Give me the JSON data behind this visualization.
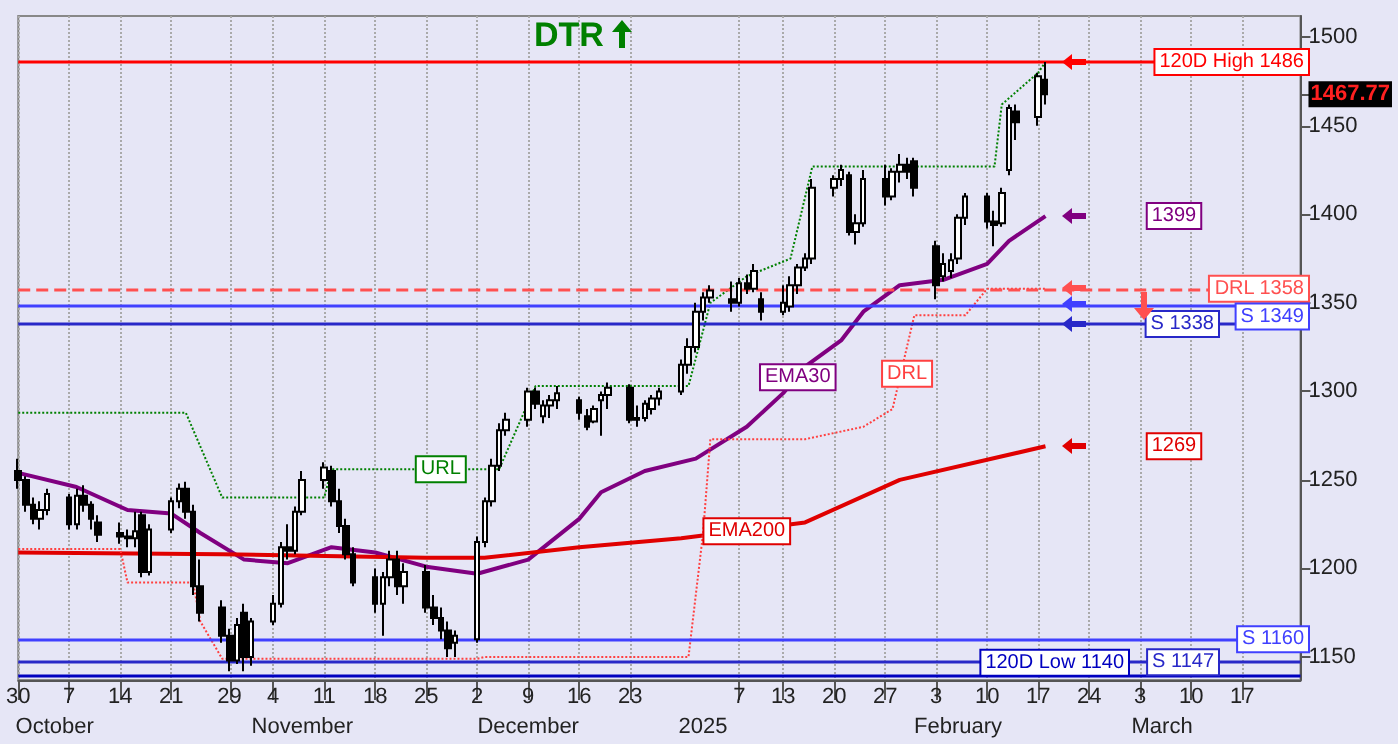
{
  "chart_data": {
    "type": "candlestick",
    "title": "DTR",
    "x": [
      "2024-09-30",
      "2024-10-01",
      "2024-10-02",
      "2024-10-03",
      "2024-10-04",
      "2024-10-07",
      "2024-10-08",
      "2024-10-09",
      "2024-10-10",
      "2024-10-11",
      "2024-10-14",
      "2024-10-15",
      "2024-10-16",
      "2024-10-17",
      "2024-10-18",
      "2024-10-21",
      "2024-10-22",
      "2024-10-23",
      "2024-10-24",
      "2024-10-25",
      "2024-10-28",
      "2024-10-29",
      "2024-10-30",
      "2024-10-31",
      "2024-11-01",
      "2024-11-04",
      "2024-11-05",
      "2024-11-06",
      "2024-11-07",
      "2024-11-08",
      "2024-11-11",
      "2024-11-12",
      "2024-11-13",
      "2024-11-14",
      "2024-11-15",
      "2024-11-18",
      "2024-11-19",
      "2024-11-20",
      "2024-11-21",
      "2024-11-22",
      "2024-11-25",
      "2024-11-26",
      "2024-11-27",
      "2024-11-28",
      "2024-11-29",
      "2024-12-02",
      "2024-12-03",
      "2024-12-04",
      "2024-12-05",
      "2024-12-06",
      "2024-12-09",
      "2024-12-10",
      "2024-12-11",
      "2024-12-12",
      "2024-12-13",
      "2024-12-16",
      "2024-12-17",
      "2024-12-18",
      "2024-12-19",
      "2024-12-20",
      "2024-12-23",
      "2024-12-24",
      "2024-12-25",
      "2024-12-26",
      "2024-12-27",
      "2024-12-30",
      "2024-12-31",
      "2025-01-01",
      "2025-01-02",
      "2025-01-03",
      "2025-01-06",
      "2025-01-07",
      "2025-01-08",
      "2025-01-09",
      "2025-01-10",
      "2025-01-13",
      "2025-01-14",
      "2025-01-15",
      "2025-01-16",
      "2025-01-17",
      "2025-01-20",
      "2025-01-21",
      "2025-01-22",
      "2025-01-23",
      "2025-01-24",
      "2025-01-27",
      "2025-01-28",
      "2025-01-29",
      "2025-01-30",
      "2025-01-31",
      "2025-02-03",
      "2025-02-04",
      "2025-02-05",
      "2025-02-06",
      "2025-02-07",
      "2025-02-10",
      "2025-02-11",
      "2025-02-12",
      "2025-02-13",
      "2025-02-14",
      "2025-02-17",
      "2025-02-18"
    ],
    "ohlc": [
      [
        1255,
        1262,
        1245,
        1250
      ],
      [
        1250,
        1252,
        1232,
        1236
      ],
      [
        1236,
        1240,
        1225,
        1228
      ],
      [
        1228,
        1238,
        1222,
        1233
      ],
      [
        1233,
        1245,
        1230,
        1242
      ],
      [
        1240,
        1242,
        1222,
        1225
      ],
      [
        1225,
        1245,
        1222,
        1241
      ],
      [
        1241,
        1247,
        1232,
        1236
      ],
      [
        1236,
        1238,
        1222,
        1228
      ],
      [
        1226,
        1230,
        1215,
        1219
      ],
      [
        1220,
        1226,
        1214,
        1218
      ],
      [
        1218,
        1222,
        1212,
        1217
      ],
      [
        1217,
        1232,
        1212,
        1221
      ],
      [
        1230,
        1232,
        1195,
        1198
      ],
      [
        1198,
        1225,
        1196,
        1222
      ],
      [
        1222,
        1240,
        1220,
        1238
      ],
      [
        1238,
        1248,
        1234,
        1245
      ],
      [
        1245,
        1249,
        1228,
        1232
      ],
      [
        1232,
        1236,
        1185,
        1190
      ],
      [
        1190,
        1205,
        1170,
        1175
      ],
      [
        1178,
        1182,
        1158,
        1162
      ],
      [
        1162,
        1166,
        1142,
        1148
      ],
      [
        1148,
        1172,
        1146,
        1168
      ],
      [
        1175,
        1180,
        1142,
        1150
      ],
      [
        1150,
        1172,
        1145,
        1170
      ],
      [
        1170,
        1185,
        1168,
        1180
      ],
      [
        1180,
        1215,
        1178,
        1212
      ],
      [
        1212,
        1225,
        1205,
        1210
      ],
      [
        1210,
        1235,
        1208,
        1232
      ],
      [
        1232,
        1255,
        1230,
        1250
      ],
      [
        1250,
        1260,
        1245,
        1257
      ],
      [
        1255,
        1258,
        1235,
        1238
      ],
      [
        1238,
        1245,
        1220,
        1224
      ],
      [
        1224,
        1228,
        1205,
        1208
      ],
      [
        1208,
        1212,
        1190,
        1192
      ],
      [
        1195,
        1200,
        1175,
        1180
      ],
      [
        1180,
        1198,
        1162,
        1195
      ],
      [
        1195,
        1210,
        1190,
        1205
      ],
      [
        1205,
        1210,
        1185,
        1190
      ],
      [
        1190,
        1203,
        1180,
        1198
      ],
      [
        1198,
        1202,
        1175,
        1178
      ],
      [
        1178,
        1185,
        1168,
        1172
      ],
      [
        1172,
        1178,
        1160,
        1165
      ],
      [
        1165,
        1170,
        1150,
        1155
      ],
      [
        1158,
        1165,
        1150,
        1162
      ],
      [
        1160,
        1218,
        1158,
        1215
      ],
      [
        1215,
        1240,
        1212,
        1238
      ],
      [
        1238,
        1262,
        1235,
        1258
      ],
      [
        1258,
        1282,
        1255,
        1278
      ],
      [
        1278,
        1288,
        1275,
        1284
      ],
      [
        1284,
        1302,
        1280,
        1300
      ],
      [
        1300,
        1302,
        1290,
        1293
      ],
      [
        1286,
        1295,
        1282,
        1292
      ],
      [
        1292,
        1298,
        1285,
        1295
      ],
      [
        1295,
        1303,
        1290,
        1299
      ],
      [
        1295,
        1297,
        1284,
        1288
      ],
      [
        1286,
        1290,
        1278,
        1280
      ],
      [
        1283,
        1292,
        1282,
        1290
      ],
      [
        1295,
        1300,
        1275,
        1298
      ],
      [
        1298,
        1305,
        1290,
        1302
      ],
      [
        1302,
        1304,
        1282,
        1284
      ],
      [
        1284,
        1292,
        1280,
        1285
      ],
      [
        1285,
        1295,
        1283,
        1293
      ],
      [
        1290,
        1298,
        1287,
        1296
      ],
      [
        1296,
        1302,
        1292,
        1300
      ],
      [
        1300,
        1318,
        1298,
        1315
      ],
      [
        1315,
        1330,
        1310,
        1325
      ],
      [
        1325,
        1350,
        1322,
        1345
      ],
      [
        1345,
        1356,
        1340,
        1353
      ],
      [
        1353,
        1360,
        1350,
        1357
      ],
      [
        1352,
        1362,
        1345,
        1350
      ],
      [
        1350,
        1364,
        1348,
        1361
      ],
      [
        1361,
        1366,
        1355,
        1358
      ],
      [
        1358,
        1372,
        1356,
        1368
      ],
      [
        1352,
        1356,
        1340,
        1345
      ],
      [
        1345,
        1360,
        1343,
        1350
      ],
      [
        1348,
        1365,
        1345,
        1360
      ],
      [
        1360,
        1372,
        1355,
        1370
      ],
      [
        1370,
        1378,
        1368,
        1375
      ],
      [
        1375,
        1420,
        1372,
        1415
      ],
      [
        1415,
        1422,
        1410,
        1420
      ],
      [
        1420,
        1428,
        1416,
        1425
      ],
      [
        1422,
        1424,
        1388,
        1390
      ],
      [
        1390,
        1400,
        1383,
        1395
      ],
      [
        1395,
        1425,
        1393,
        1420
      ],
      [
        1420,
        1428,
        1405,
        1410
      ],
      [
        1410,
        1426,
        1408,
        1424
      ],
      [
        1424,
        1434,
        1418,
        1428
      ],
      [
        1428,
        1432,
        1420,
        1424
      ],
      [
        1430,
        1432,
        1410,
        1415
      ],
      [
        1382,
        1385,
        1352,
        1360
      ],
      [
        1365,
        1378,
        1362,
        1372
      ],
      [
        1368,
        1378,
        1364,
        1374
      ],
      [
        1375,
        1400,
        1372,
        1398
      ],
      [
        1398,
        1412,
        1394,
        1410
      ],
      [
        1410,
        1412,
        1392,
        1396
      ],
      [
        1396,
        1402,
        1382,
        1394
      ],
      [
        1395,
        1415,
        1393,
        1412
      ],
      [
        1425,
        1462,
        1422,
        1460
      ],
      [
        1458,
        1462,
        1442,
        1452
      ],
      [
        1455,
        1480,
        1450,
        1478
      ],
      [
        1476,
        1486,
        1462,
        1467.77
      ]
    ],
    "series": [
      {
        "type": "line",
        "color": "#800080",
        "line_style": "solid",
        "x": [
          "2024-09-30",
          "2024-10-08",
          "2024-10-15",
          "2024-10-21",
          "2024-10-25",
          "2024-10-31",
          "2024-11-06",
          "2024-11-12",
          "2024-11-18",
          "2024-11-25",
          "2024-12-02",
          "2024-12-09",
          "2024-12-16",
          "2024-12-19",
          "2024-12-25",
          "2025-01-01",
          "2025-01-08",
          "2025-01-13",
          "2025-01-16",
          "2025-01-21",
          "2025-01-24",
          "2025-01-29",
          "2025-02-04",
          "2025-02-10",
          "2025-02-13",
          "2025-02-18"
        ],
        "values": [
          1254,
          1246,
          1233,
          1231,
          1220,
          1205,
          1203,
          1212,
          1209,
          1201,
          1197,
          1205,
          1228,
          1243,
          1255,
          1262,
          1280,
          1299,
          1314,
          1329,
          1345,
          1360,
          1363,
          1372,
          1385,
          1399
        ]
      },
      {
        "type": "line",
        "color": "#e00000",
        "line_style": "solid",
        "x": [
          "2024-09-30",
          "2024-10-28",
          "2024-11-25",
          "2024-12-03",
          "2024-12-16",
          "2024-12-30",
          "2025-01-16",
          "2025-01-29",
          "2025-02-18"
        ],
        "values": [
          1209,
          1208,
          1206,
          1206,
          1212,
          1217,
          1226,
          1250,
          1269
        ]
      },
      {
        "type": "line",
        "color": "#008000",
        "line_style": "dotted",
        "x": [
          "2024-09-30",
          "2024-10-23",
          "2024-10-28",
          "2024-11-11",
          "2024-11-12",
          "2024-12-05",
          "2024-12-10",
          "2024-12-31",
          "2025-01-03",
          "2025-01-08",
          "2025-01-14",
          "2025-01-17",
          "2025-02-11",
          "2025-02-12",
          "2025-02-17",
          "2025-02-18"
        ],
        "values": [
          1288,
          1288,
          1240,
          1240,
          1256,
          1256,
          1303,
          1303,
          1350,
          1365,
          1375,
          1427,
          1427,
          1462,
          1480,
          1486
        ]
      },
      {
        "type": "line",
        "color": "#ff4040",
        "line_style": "dotted",
        "x": [
          "2024-09-30",
          "2024-10-14",
          "2024-10-15",
          "2024-10-24",
          "2024-10-25",
          "2024-10-28",
          "2024-12-02",
          "2024-12-03",
          "2024-12-31",
          "2025-01-02",
          "2025-01-03",
          "2025-01-16",
          "2025-01-24",
          "2025-01-28",
          "2025-01-31",
          "2025-02-07",
          "2025-02-10",
          "2025-02-18"
        ],
        "values": [
          1211,
          1211,
          1192,
          1192,
          1170,
          1149,
          1149,
          1150,
          1150,
          1220,
          1273,
          1273,
          1280,
          1290,
          1343,
          1343,
          1358,
          1358
        ]
      }
    ],
    "xlim": [
      "2024-09-30",
      "2025-03-25"
    ],
    "xticks": [
      {
        "value": "2024-09-30",
        "label": "30"
      },
      {
        "value": "2024-10-07",
        "label": "7"
      },
      {
        "value": "2024-10-14",
        "label": "14"
      },
      {
        "value": "2024-10-21",
        "label": "21"
      },
      {
        "value": "2024-10-29",
        "label": "29"
      },
      {
        "value": "2024-11-04",
        "label": "4"
      },
      {
        "value": "2024-11-11",
        "label": "11"
      },
      {
        "value": "2024-11-18",
        "label": "18"
      },
      {
        "value": "2024-11-25",
        "label": "25"
      },
      {
        "value": "2024-12-02",
        "label": "2"
      },
      {
        "value": "2024-12-09",
        "label": "9"
      },
      {
        "value": "2024-12-16",
        "label": "16"
      },
      {
        "value": "2024-12-23",
        "label": "23"
      },
      {
        "value": "2025-01-07",
        "label": "7"
      },
      {
        "value": "2025-01-13",
        "label": "13"
      },
      {
        "value": "2025-01-20",
        "label": "20"
      },
      {
        "value": "2025-01-27",
        "label": "27"
      },
      {
        "value": "2025-02-03",
        "label": "3"
      },
      {
        "value": "2025-02-10",
        "label": "10"
      },
      {
        "value": "2025-02-17",
        "label": "17"
      },
      {
        "value": "2025-02-24",
        "label": "24"
      },
      {
        "value": "2025-03-03",
        "label": "3"
      },
      {
        "value": "2025-03-10",
        "label": "10"
      },
      {
        "value": "2025-03-17",
        "label": "17"
      }
    ],
    "x2lim": [
      "2024-09-30",
      "2025-03-25"
    ],
    "x2ticks": [
      {
        "value": "2024-10-05",
        "label": "October"
      },
      {
        "value": "2024-11-08",
        "label": "November"
      },
      {
        "value": "2024-12-09",
        "label": "December"
      },
      {
        "value": "2025-01-02",
        "label": "2025"
      },
      {
        "value": "2025-02-06",
        "label": "February"
      },
      {
        "value": "2025-03-06",
        "label": "March"
      }
    ],
    "ylim": [
      1137,
      1512
    ],
    "yticks": [
      1150,
      1200,
      1250,
      1300,
      1350,
      1400,
      1450,
      {
        "value": 1467.77,
        "label": "1467.77"
      },
      1500
    ],
    "grid": "x",
    "ref_lines": [
      {
        "axis": "y",
        "value": 1486,
        "label": "120D High 1486",
        "color": "#ff0000",
        "line_style": "solid"
      },
      {
        "axis": "y",
        "value": 1358,
        "label": "DRL 1358",
        "color": "#ff5050",
        "line_style": "dashed"
      },
      {
        "axis": "y",
        "value": 1349,
        "label": "S 1349",
        "color": "#4040ff",
        "line_style": "solid"
      },
      {
        "axis": "y",
        "value": 1338,
        "label": "S 1338",
        "color": "#2828c8",
        "line_style": "solid"
      },
      {
        "axis": "y",
        "value": 1160,
        "label": "S 1160",
        "color": "#4040ff",
        "line_style": "solid"
      },
      {
        "axis": "y",
        "value": 1147,
        "label": "S 1147",
        "color": "#2828c8",
        "line_style": "solid"
      },
      {
        "axis": "y",
        "value": 1140,
        "label": "120D Low 1140",
        "color": "#0000c0",
        "line_style": "solid"
      }
    ],
    "annotations": [
      {
        "text": "URL",
        "x": "2024-11-27",
        "y": 1256
      },
      {
        "text": "EMA30",
        "x": "2025-01-15",
        "y": 1308
      },
      {
        "text": "EMA200",
        "x": "2025-01-08",
        "y": 1221
      },
      {
        "text": "DRL",
        "x": "2025-01-30",
        "y": 1310
      },
      {
        "text": "1399",
        "y": 1399
      },
      {
        "text": "1269",
        "y": 1269
      }
    ]
  }
}
